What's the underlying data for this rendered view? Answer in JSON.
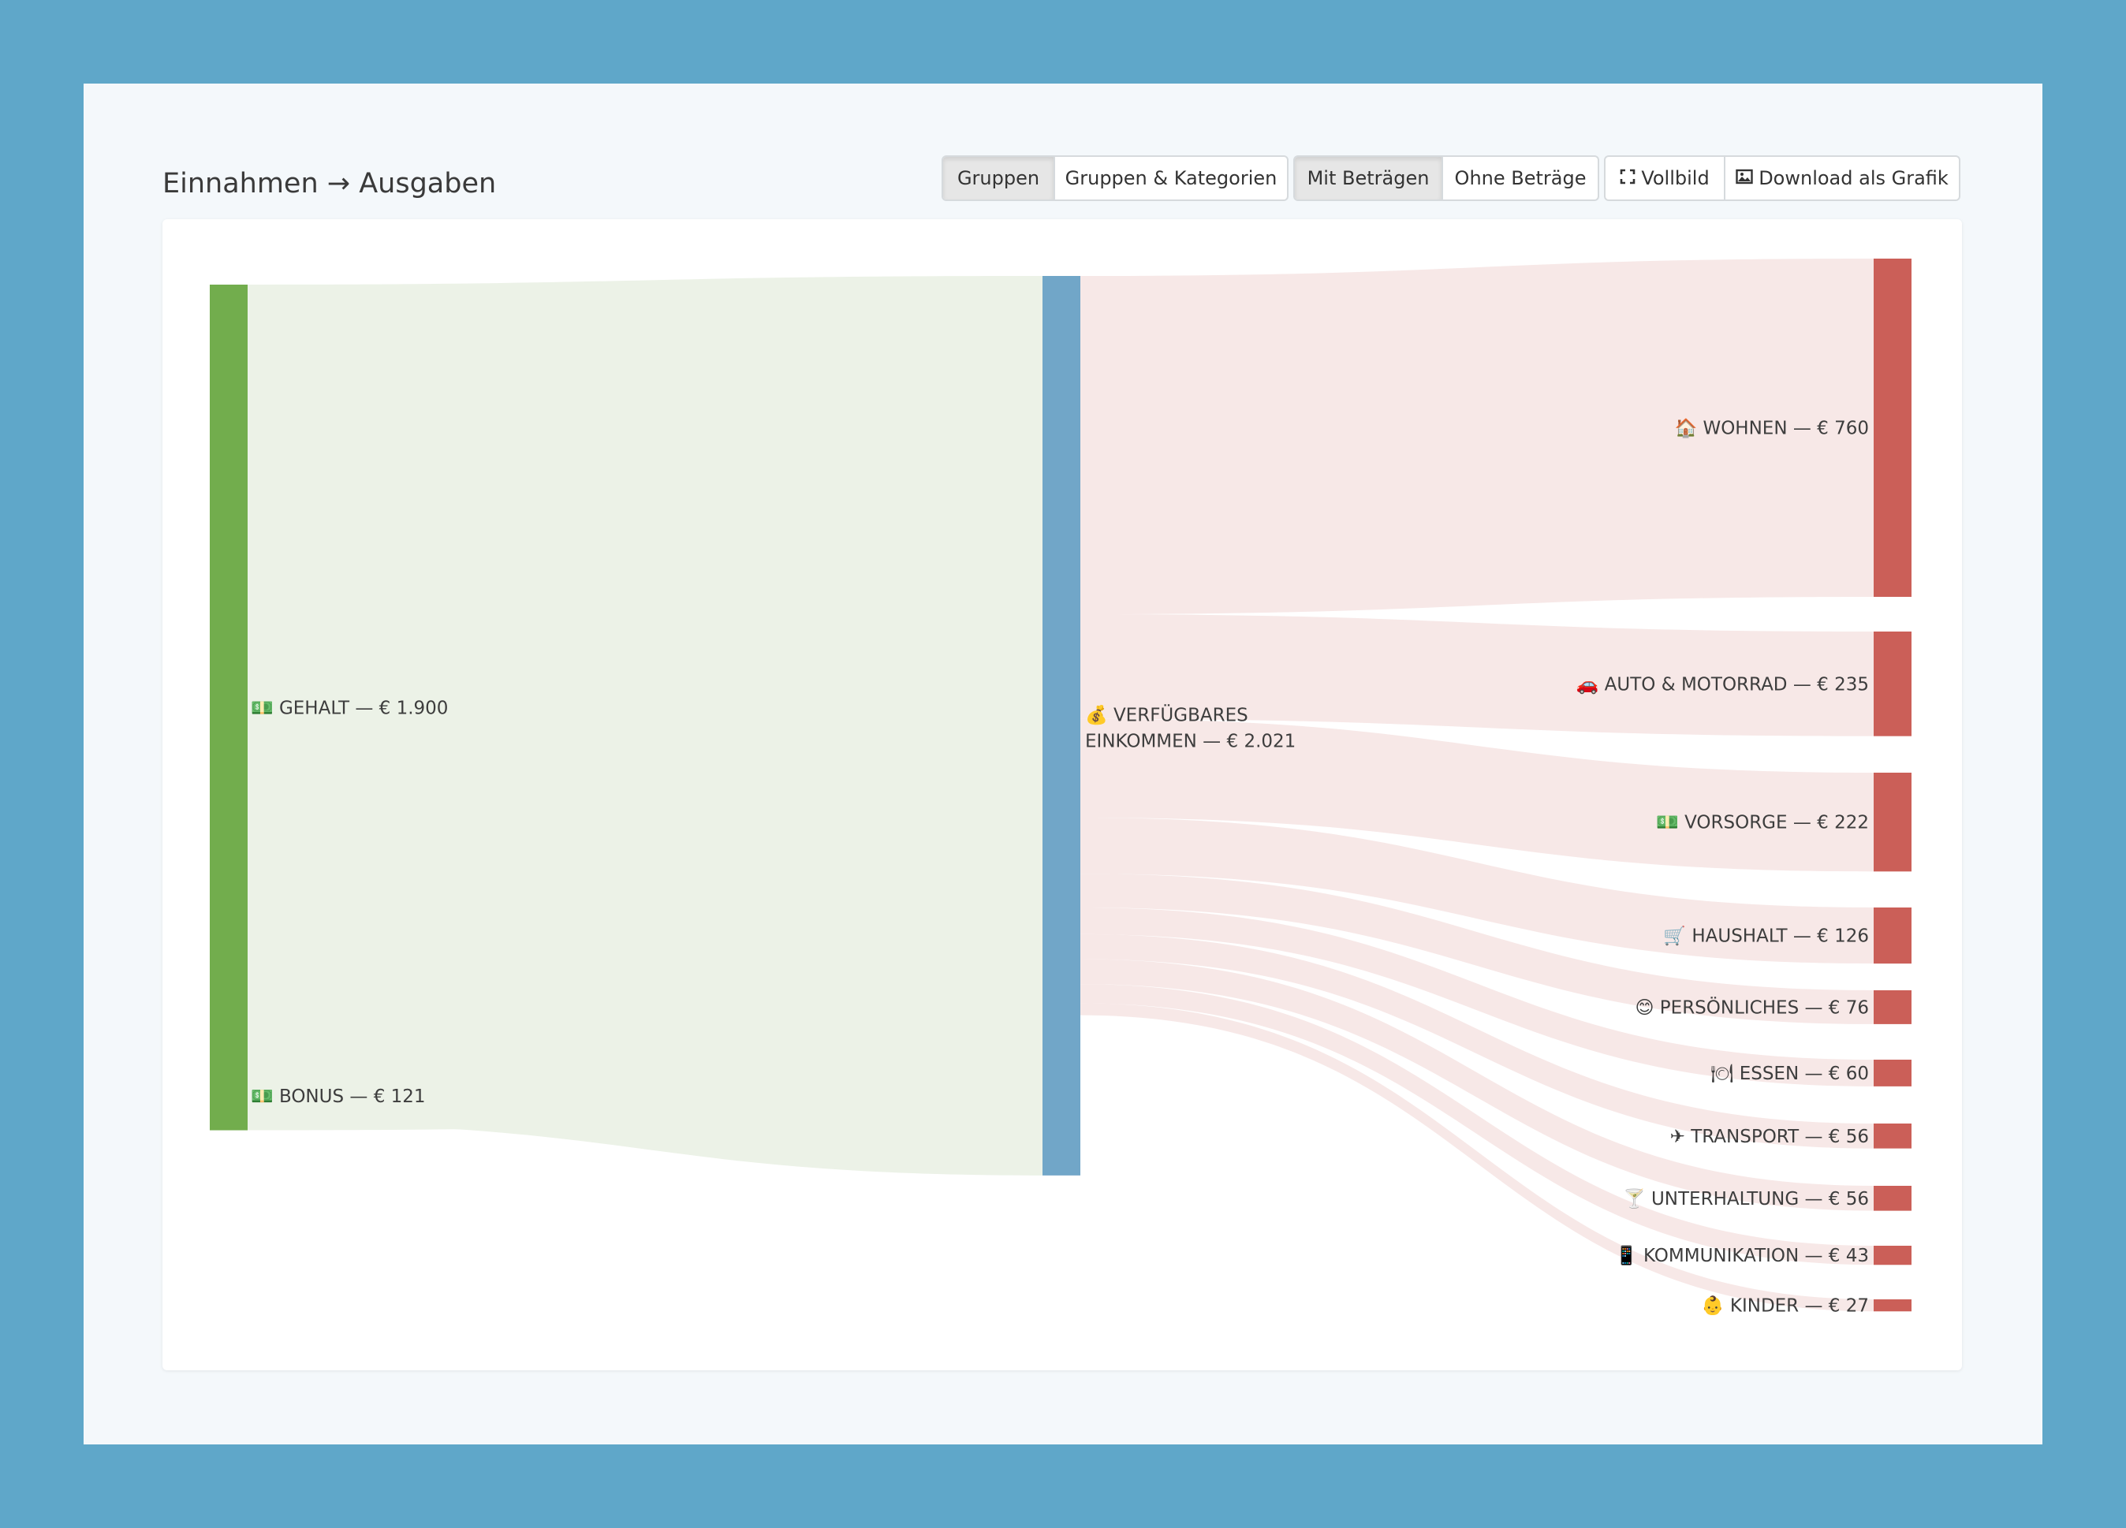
{
  "header": {
    "title": "Einnahmen → Ausgaben"
  },
  "toolbar": {
    "group_mode": {
      "active": "Gruppen",
      "other": "Gruppen & Kategorien"
    },
    "amount_mode": {
      "active": "Mit Beträgen",
      "other": "Ohne Beträge"
    },
    "fullscreen_label": "Vollbild",
    "download_label": "Download als Grafik",
    "fullscreen_icon": "expand-icon",
    "download_icon": "image-icon"
  },
  "colors": {
    "income_node": "#72ad4d",
    "center_node": "#71a6c8",
    "expense_node": "#cb5f58",
    "income_flow": "#ecf2e7",
    "expense_flow": "#f7e8e7"
  },
  "chart_data": {
    "type": "sankey",
    "sources": [
      {
        "icon": "💵",
        "name": "GEHALT",
        "value": 1900,
        "label": "GEHALT — € 1.900"
      },
      {
        "icon": "💵",
        "name": "BONUS",
        "value": 121,
        "label": "BONUS — € 121"
      }
    ],
    "center": {
      "icon": "💰",
      "name": "VERFÜGBARES EINKOMMEN",
      "value": 2021,
      "label_line1": "VERFÜGBARES",
      "label_line2": "EINKOMMEN — € 2.021"
    },
    "targets": [
      {
        "icon": "🏠",
        "name": "WOHNEN",
        "value": 760,
        "label": "WOHNEN — € 760"
      },
      {
        "icon": "🚗",
        "name": "AUTO & MOTORRAD",
        "value": 235,
        "label": "AUTO & MOTORRAD — € 235"
      },
      {
        "icon": "💵",
        "name": "VORSORGE",
        "value": 222,
        "label": "VORSORGE — € 222"
      },
      {
        "icon": "🛒",
        "name": "HAUSHALT",
        "value": 126,
        "label": "HAUSHALT — € 126"
      },
      {
        "icon": "😊",
        "name": "PERSÖNLICHES",
        "value": 76,
        "label": "PERSÖNLICHES — € 76"
      },
      {
        "icon": "🍽",
        "name": "ESSEN",
        "value": 60,
        "label": "ESSEN — € 60"
      },
      {
        "icon": "✈",
        "name": "TRANSPORT",
        "value": 56,
        "label": "TRANSPORT — € 56"
      },
      {
        "icon": "🍸",
        "name": "UNTERHALTUNG",
        "value": 56,
        "label": "UNTERHALTUNG — € 56"
      },
      {
        "icon": "📱",
        "name": "KOMMUNIKATION",
        "value": 43,
        "label": "KOMMUNIKATION — € 43"
      },
      {
        "icon": "👶",
        "name": "KINDER",
        "value": 27,
        "label": "KINDER — € 27"
      }
    ]
  }
}
